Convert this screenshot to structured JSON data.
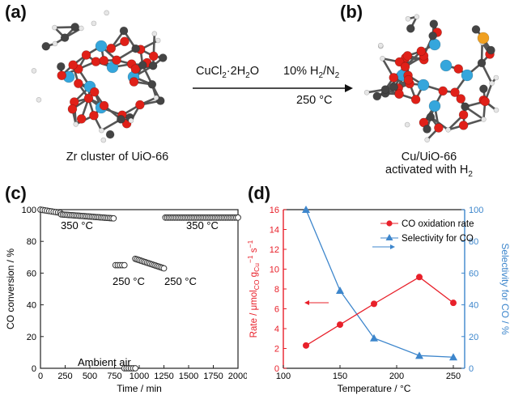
{
  "panels": {
    "a": {
      "label": "(a)",
      "caption": "Zr cluster of UiO-66"
    },
    "b": {
      "label": "(b)",
      "caption_line1": "Cu/UiO-66",
      "caption_line2_prefix": "activated with H",
      "caption_line2_sub": "2"
    },
    "c": {
      "label": "(c)"
    },
    "d": {
      "label": "(d)"
    }
  },
  "reaction": {
    "step1_main": "CuCl",
    "step1_sub": "2",
    "step1_tail": "·2H",
    "step1_sub2": "2",
    "step1_end": "O",
    "step2_pre": "10% H",
    "step2_sub": "2",
    "step2_post": "/N",
    "step2_sub2": "2",
    "step2_temp": "250 °C"
  },
  "chart_data": [
    {
      "type": "scatter",
      "panel": "c",
      "xlabel": "Time / min",
      "ylabel": "CO conversion / %",
      "xlim": [
        0,
        2000
      ],
      "ylim": [
        0,
        100
      ],
      "xticks": [
        0,
        250,
        500,
        750,
        1000,
        1250,
        1500,
        1750,
        2000
      ],
      "yticks": [
        0,
        20,
        40,
        60,
        80,
        100
      ],
      "annotations": [
        "350 °C",
        "250 °C",
        "250 °C",
        "350 °C",
        "Ambient air"
      ],
      "segments": [
        {
          "x_start": 0,
          "x_end": 200,
          "y_start": 100,
          "y_end": 98,
          "n": 10
        },
        {
          "x_start": 210,
          "x_end": 740,
          "y_start": 97,
          "y_end": 94.5,
          "n": 30
        },
        {
          "x_start": 760,
          "x_end": 850,
          "y_start": 65,
          "y_end": 65,
          "n": 5
        },
        {
          "x_start": 850,
          "x_end": 960,
          "y_start": 0,
          "y_end": 0,
          "n": 6
        },
        {
          "x_start": 960,
          "x_end": 1250,
          "y_start": 69,
          "y_end": 63,
          "n": 18
        },
        {
          "x_start": 1265,
          "x_end": 2000,
          "y_start": 95,
          "y_end": 95,
          "n": 42
        }
      ]
    },
    {
      "type": "line",
      "panel": "d",
      "xlabel": "Temperature / °C",
      "ylabel": "Rate / μmol",
      "ylabel_right": "Selectivity for CO / %",
      "x": [
        120,
        150,
        180,
        220,
        250
      ],
      "series": [
        {
          "name": "CO oxidation rate",
          "axis": "left",
          "values": [
            2.3,
            4.4,
            6.5,
            9.2,
            6.6
          ],
          "color": "#e8202a"
        },
        {
          "name": "Selectivity for CO",
          "axis": "right",
          "values": [
            100,
            49,
            19,
            8,
            7
          ],
          "color": "#3d86cc"
        }
      ],
      "xlim": [
        100,
        260
      ],
      "ylim": [
        0,
        16
      ],
      "ylim_right": [
        0,
        100
      ],
      "xticks": [
        100,
        150,
        200,
        250
      ],
      "yticks": [
        0,
        2,
        4,
        6,
        8,
        10,
        12,
        14,
        16
      ],
      "yticks_right": [
        0,
        20,
        40,
        60,
        80,
        100
      ],
      "legend_position": "top-right"
    }
  ],
  "colors": {
    "red": "#e8202a",
    "blue": "#3d86cc",
    "zr": "#35a6dc",
    "o": "#e02018",
    "c": "#444444",
    "cu": "#f0a020"
  }
}
